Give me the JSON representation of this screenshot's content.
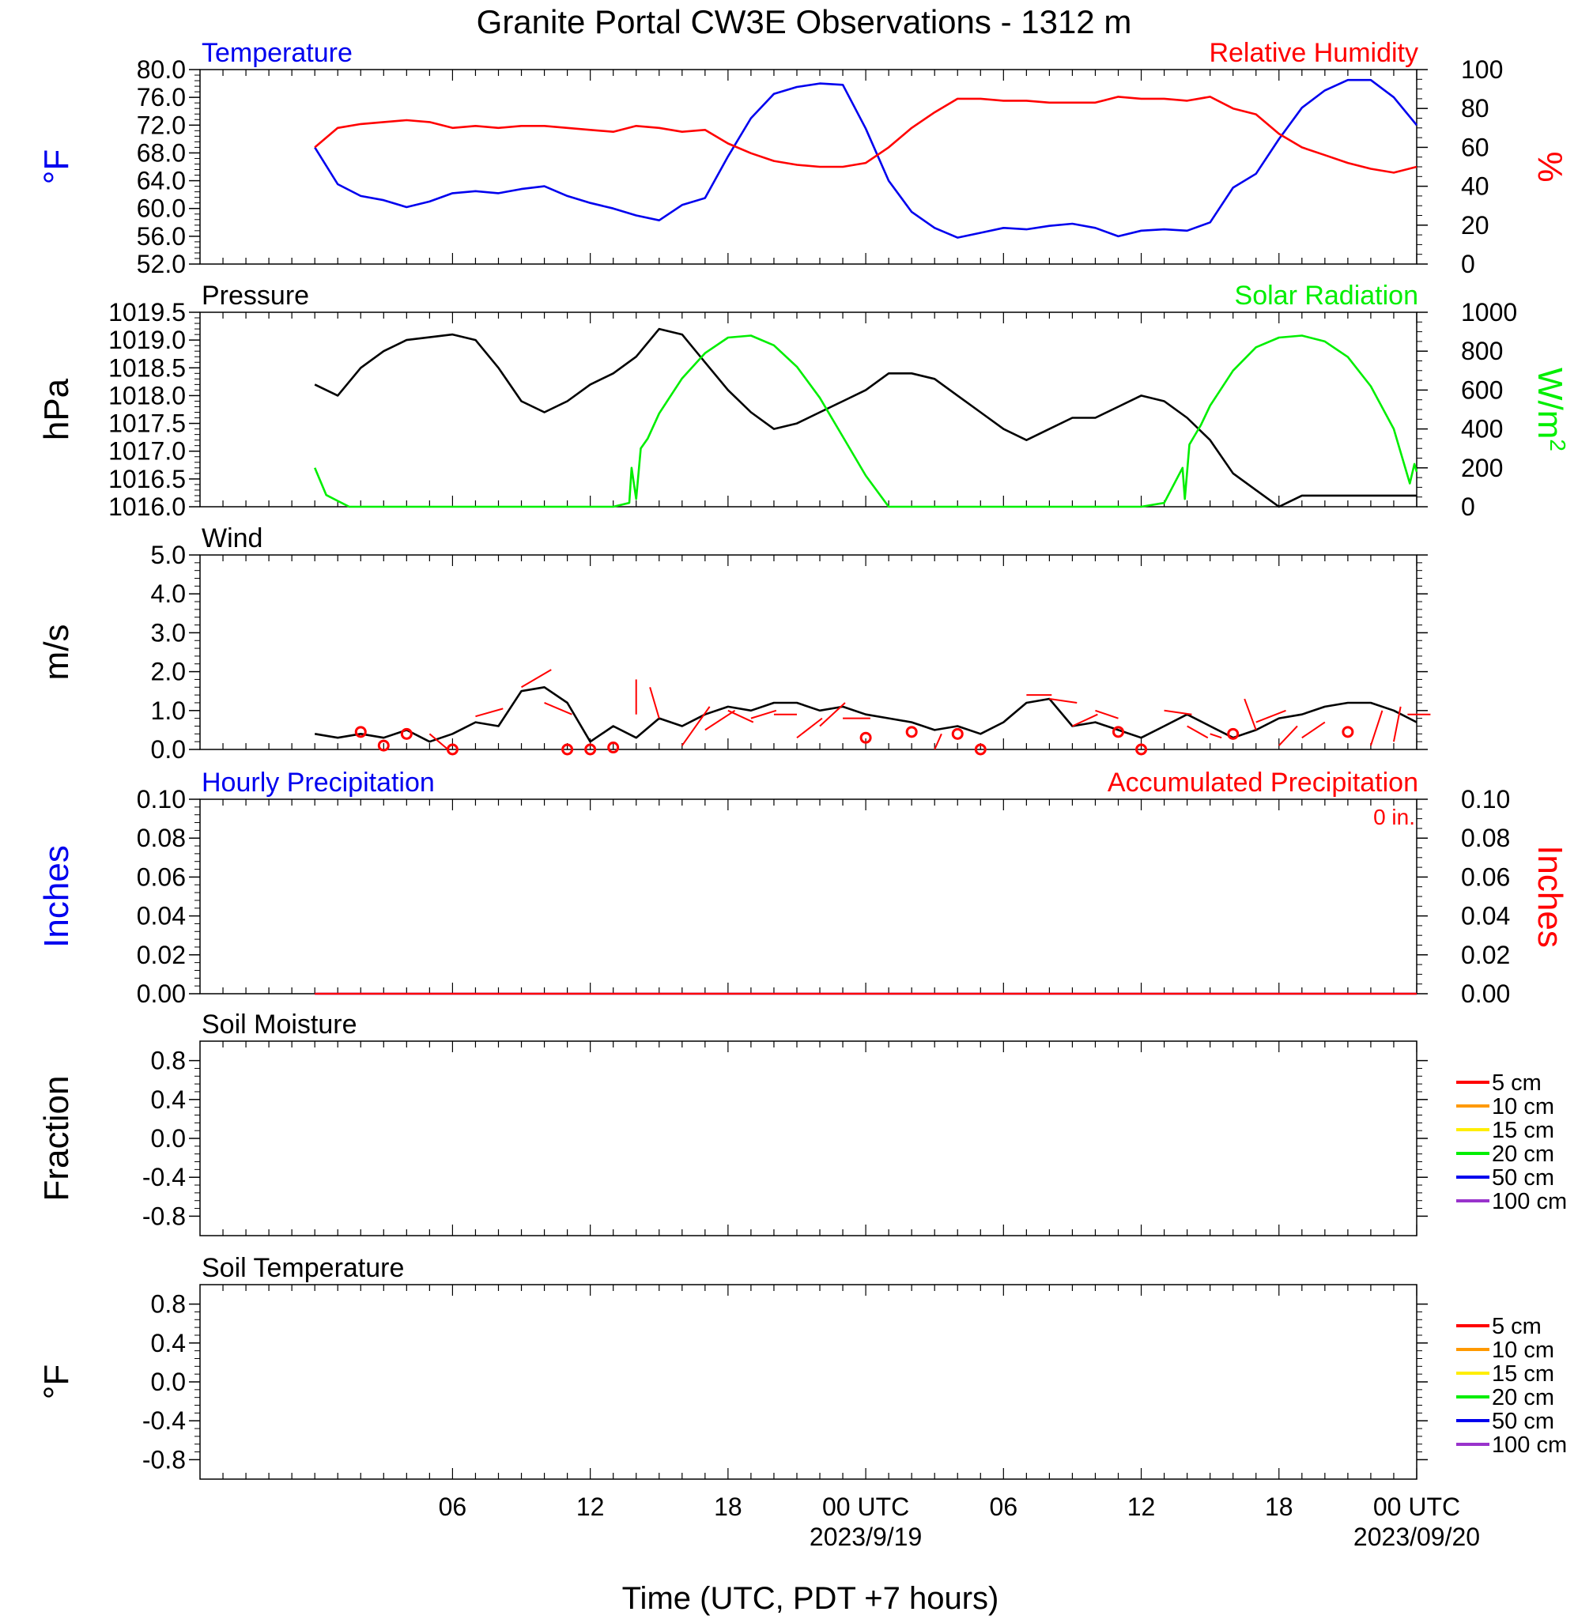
{
  "title": "Granite Portal CW3E Observations - 1312 m",
  "xlabel": "Time (UTC, PDT +7 hours)",
  "x_ticks": [
    {
      "hour": 6,
      "label": "06"
    },
    {
      "hour": 12,
      "label": "12"
    },
    {
      "hour": 18,
      "label": "18"
    },
    {
      "hour": 24,
      "label": "00 UTC",
      "sub": "2023/9/19"
    },
    {
      "hour": 30,
      "label": "06"
    },
    {
      "hour": 36,
      "label": "12"
    },
    {
      "hour": 42,
      "label": "18"
    },
    {
      "hour": 48,
      "label": "00 UTC",
      "sub": "2023/09/20"
    }
  ],
  "colors": {
    "temperature": "#0000ee",
    "humidity": "#ff0000",
    "pressure": "#000000",
    "solar": "#00ee00",
    "wind": "#000000",
    "wind_barb": "#ff0000",
    "hourly_precip": "#0000ee",
    "accum_precip": "#ff0000"
  },
  "chart_data": [
    {
      "id": "temp_rh",
      "type": "line",
      "x_unit": "hours since 2023-09-18 00 UTC",
      "xlim": [
        -5,
        48
      ],
      "left": {
        "label": "Temperature",
        "unit_label": "°F",
        "ylim": [
          52,
          80
        ],
        "ticks": [
          "52.0",
          "56.0",
          "60.0",
          "64.0",
          "68.0",
          "72.0",
          "76.0",
          "80.0"
        ]
      },
      "right": {
        "label": "Relative Humidity",
        "unit_label": "%",
        "ylim": [
          0,
          100
        ],
        "ticks": [
          "0",
          "20",
          "40",
          "60",
          "80",
          "100"
        ]
      },
      "series": [
        {
          "name": "Temperature",
          "axis": "left",
          "color": "#0000ee",
          "x": [
            0,
            1,
            2,
            3,
            4,
            5,
            6,
            7,
            8,
            9,
            10,
            11,
            12,
            13,
            14,
            15,
            16,
            17,
            18,
            19,
            20,
            21,
            22,
            23,
            24,
            25,
            26,
            27,
            28,
            29,
            30,
            31,
            32,
            33,
            34,
            35,
            36,
            37,
            38,
            39,
            40,
            41,
            42,
            43,
            44,
            45,
            46,
            47,
            48
          ],
          "y": [
            68.8,
            63.5,
            61.8,
            61.2,
            60.2,
            61.0,
            62.2,
            62.5,
            62.2,
            62.8,
            63.2,
            61.8,
            60.8,
            60.0,
            59.0,
            58.3,
            60.5,
            61.5,
            67.5,
            73.0,
            76.5,
            77.5,
            78.0,
            77.8,
            71.5,
            64.0,
            59.5,
            57.2,
            55.8,
            56.5,
            57.2,
            57.0,
            57.5,
            57.8,
            57.2,
            56.0,
            56.8,
            57.0,
            56.8,
            58.0,
            63.0,
            65.0,
            70.0,
            74.5,
            77.0,
            78.5,
            78.5,
            76.0,
            72.0
          ]
        },
        {
          "name": "Relative Humidity",
          "axis": "right",
          "color": "#ff0000",
          "x": [
            0,
            1,
            2,
            3,
            4,
            5,
            6,
            7,
            8,
            9,
            10,
            11,
            12,
            13,
            14,
            15,
            16,
            17,
            18,
            19,
            20,
            21,
            22,
            23,
            24,
            25,
            26,
            27,
            28,
            29,
            30,
            31,
            32,
            33,
            34,
            35,
            36,
            37,
            38,
            39,
            40,
            41,
            42,
            43,
            44,
            45,
            46,
            47,
            48
          ],
          "y": [
            60,
            70,
            72,
            73,
            74,
            73,
            70,
            71,
            70,
            71,
            71,
            70,
            69,
            68,
            71,
            70,
            68,
            69,
            62,
            57,
            53,
            51,
            50,
            50,
            52,
            60,
            70,
            78,
            85,
            85,
            84,
            84,
            83,
            83,
            83,
            86,
            85,
            85,
            84,
            86,
            80,
            77,
            67,
            60,
            56,
            52,
            49,
            47,
            50
          ]
        }
      ]
    },
    {
      "id": "pressure_solar",
      "type": "line",
      "x_unit": "hours since 2023-09-18 00 UTC",
      "xlim": [
        -5,
        48
      ],
      "left": {
        "label": "Pressure",
        "unit_label": "hPa",
        "ylim": [
          1016.0,
          1019.5
        ],
        "ticks": [
          "1016.0",
          "1016.5",
          "1017.0",
          "1017.5",
          "1018.0",
          "1018.5",
          "1019.0",
          "1019.5"
        ]
      },
      "right": {
        "label": "Solar Radiation",
        "unit_label": "W/m",
        "unit_sup": "2",
        "ylim": [
          0,
          1000
        ],
        "ticks": [
          "0",
          "200",
          "400",
          "600",
          "800",
          "1000"
        ]
      },
      "series": [
        {
          "name": "Pressure",
          "axis": "left",
          "color": "#000000",
          "x": [
            0,
            1,
            2,
            3,
            4,
            5,
            6,
            7,
            8,
            9,
            10,
            11,
            12,
            13,
            14,
            15,
            16,
            17,
            18,
            19,
            20,
            21,
            22,
            23,
            24,
            25,
            26,
            27,
            28,
            29,
            30,
            31,
            32,
            33,
            34,
            35,
            36,
            37,
            38,
            39,
            40,
            41,
            42,
            43,
            44,
            45,
            46,
            47,
            48
          ],
          "y": [
            1018.2,
            1018.0,
            1018.5,
            1018.8,
            1019.0,
            1019.05,
            1019.1,
            1019.0,
            1018.5,
            1017.9,
            1017.7,
            1017.9,
            1018.2,
            1018.4,
            1018.7,
            1019.2,
            1019.1,
            1018.6,
            1018.1,
            1017.7,
            1017.4,
            1017.5,
            1017.7,
            1017.9,
            1018.1,
            1018.4,
            1018.4,
            1018.3,
            1018.0,
            1017.7,
            1017.4,
            1017.2,
            1017.4,
            1017.6,
            1017.6,
            1017.8,
            1018.0,
            1017.9,
            1017.6,
            1017.2,
            1016.6,
            1016.3,
            1016.0,
            1016.2,
            1016.2,
            1016.2,
            1016.2,
            1016.2,
            1016.2
          ]
        },
        {
          "name": "Solar Radiation",
          "axis": "right",
          "color": "#00ee00",
          "x": [
            0,
            0.5,
            1,
            1.5,
            2,
            3,
            4,
            5,
            6,
            7,
            8,
            9,
            10,
            11,
            12,
            13,
            13.7,
            13.8,
            14.0,
            14.2,
            14.5,
            15,
            16,
            17,
            18,
            19,
            20,
            21,
            22,
            23,
            24,
            25,
            26,
            27,
            28,
            29,
            30,
            31,
            32,
            33,
            34,
            35,
            36,
            37,
            37.8,
            37.9,
            38.1,
            38.3,
            38.6,
            39,
            40,
            41,
            42,
            43,
            44,
            45,
            46,
            47,
            47.7,
            47.9,
            48
          ],
          "y": [
            200,
            60,
            30,
            0,
            0,
            0,
            0,
            0,
            0,
            0,
            0,
            0,
            0,
            0,
            0,
            0,
            20,
            200,
            40,
            300,
            350,
            480,
            660,
            790,
            870,
            880,
            830,
            720,
            560,
            360,
            160,
            0,
            0,
            0,
            0,
            0,
            0,
            0,
            0,
            0,
            0,
            0,
            0,
            20,
            200,
            40,
            320,
            360,
            420,
            520,
            700,
            820,
            870,
            880,
            850,
            770,
            620,
            400,
            120,
            220,
            180
          ]
        }
      ]
    },
    {
      "id": "wind",
      "type": "line",
      "x_unit": "hours since 2023-09-18 00 UTC",
      "xlim": [
        -5,
        48
      ],
      "left": {
        "label": "Wind",
        "unit_label": "m/s",
        "ylim": [
          0,
          5
        ],
        "ticks": [
          "0.0",
          "1.0",
          "2.0",
          "3.0",
          "4.0",
          "5.0"
        ]
      },
      "series": [
        {
          "name": "Wind",
          "axis": "left",
          "color": "#000000",
          "x": [
            0,
            1,
            2,
            3,
            4,
            5,
            6,
            7,
            8,
            9,
            10,
            11,
            12,
            13,
            14,
            15,
            16,
            17,
            18,
            19,
            20,
            21,
            22,
            23,
            24,
            25,
            26,
            27,
            28,
            29,
            30,
            31,
            32,
            33,
            34,
            35,
            36,
            37,
            38,
            39,
            40,
            41,
            42,
            43,
            44,
            45,
            46,
            47,
            48
          ],
          "y": [
            0.4,
            0.3,
            0.4,
            0.3,
            0.5,
            0.2,
            0.4,
            0.7,
            0.6,
            1.5,
            1.6,
            1.2,
            0.2,
            0.6,
            0.3,
            0.8,
            0.6,
            0.9,
            1.1,
            1.0,
            1.2,
            1.2,
            1.0,
            1.1,
            0.9,
            0.8,
            0.7,
            0.5,
            0.6,
            0.4,
            0.7,
            1.2,
            1.3,
            0.6,
            0.7,
            0.5,
            0.3,
            0.6,
            0.9,
            0.6,
            0.3,
            0.5,
            0.8,
            0.9,
            1.1,
            1.2,
            1.2,
            1.0,
            0.7
          ]
        }
      ],
      "barbs": [
        {
          "x": 2,
          "y": 0.45,
          "calm": true
        },
        {
          "x": 3,
          "y": 0.1,
          "calm": true
        },
        {
          "x": 4,
          "y": 0.4,
          "calm": true
        },
        {
          "x": 6,
          "y": 0.0,
          "calm": true
        },
        {
          "x": 11,
          "y": 0.0,
          "calm": true
        },
        {
          "x": 12,
          "y": 0.0,
          "calm": true
        },
        {
          "x": 13,
          "y": 0.05,
          "calm": true
        },
        {
          "x": 24,
          "y": 0.3,
          "calm": true
        },
        {
          "x": 26,
          "y": 0.45,
          "calm": true
        },
        {
          "x": 28,
          "y": 0.4,
          "calm": true
        },
        {
          "x": 29,
          "y": 0.0,
          "calm": true
        },
        {
          "x": 35,
          "y": 0.45,
          "calm": true
        },
        {
          "x": 36,
          "y": 0.0,
          "calm": true
        },
        {
          "x": 40,
          "y": 0.4,
          "calm": true
        },
        {
          "x": 45,
          "y": 0.45,
          "calm": true
        },
        {
          "x": 5,
          "y": 0.4,
          "dx": 0.8,
          "dy": -0.4
        },
        {
          "x": 7,
          "y": 0.85,
          "dx": 1.2,
          "dy": 0.2
        },
        {
          "x": 9,
          "y": 1.6,
          "dx": 1.3,
          "dy": 0.45
        },
        {
          "x": 10,
          "y": 1.2,
          "dx": 1.2,
          "dy": -0.3
        },
        {
          "x": 14,
          "y": 0.9,
          "dx": 0.0,
          "dy": 0.9
        },
        {
          "x": 15,
          "y": 0.8,
          "dx": -0.4,
          "dy": 0.8
        },
        {
          "x": 16,
          "y": 0.1,
          "dx": 1.2,
          "dy": 1.0
        },
        {
          "x": 17,
          "y": 0.5,
          "dx": 1.3,
          "dy": 0.5
        },
        {
          "x": 18,
          "y": 1.0,
          "dx": 1.1,
          "dy": -0.3
        },
        {
          "x": 19,
          "y": 0.8,
          "dx": 1.1,
          "dy": 0.2
        },
        {
          "x": 20,
          "y": 0.9,
          "dx": 1.0,
          "dy": 0.0
        },
        {
          "x": 21,
          "y": 0.3,
          "dx": 1.1,
          "dy": 0.5
        },
        {
          "x": 22,
          "y": 0.6,
          "dx": 1.1,
          "dy": 0.6
        },
        {
          "x": 23,
          "y": 0.8,
          "dx": 1.2,
          "dy": 0.0
        },
        {
          "x": 27,
          "y": 0.0,
          "dx": 0.3,
          "dy": 0.4
        },
        {
          "x": 31,
          "y": 1.4,
          "dx": 1.1,
          "dy": 0.0
        },
        {
          "x": 32,
          "y": 1.3,
          "dx": 1.2,
          "dy": -0.1
        },
        {
          "x": 33,
          "y": 0.6,
          "dx": 1.1,
          "dy": 0.3
        },
        {
          "x": 34,
          "y": 1.0,
          "dx": 1.0,
          "dy": -0.2
        },
        {
          "x": 37,
          "y": 1.0,
          "dx": 1.2,
          "dy": -0.1
        },
        {
          "x": 38,
          "y": 0.6,
          "dx": 0.9,
          "dy": -0.3
        },
        {
          "x": 39,
          "y": 0.4,
          "dx": 0.5,
          "dy": -0.1
        },
        {
          "x": 40.5,
          "y": 1.3,
          "dx": 0.5,
          "dy": -0.8
        },
        {
          "x": 41,
          "y": 0.7,
          "dx": 1.3,
          "dy": 0.3
        },
        {
          "x": 42,
          "y": 0.1,
          "dx": 0.8,
          "dy": 0.5
        },
        {
          "x": 43,
          "y": 0.3,
          "dx": 1.0,
          "dy": 0.4
        },
        {
          "x": 46,
          "y": 0.1,
          "dx": 0.5,
          "dy": 0.9
        },
        {
          "x": 47,
          "y": 0.2,
          "dx": 0.3,
          "dy": 0.9
        },
        {
          "x": 47.6,
          "y": 0.9,
          "dx": 1.0,
          "dy": 0.0
        }
      ]
    },
    {
      "id": "precip",
      "type": "line",
      "x_unit": "hours since 2023-09-18 00 UTC",
      "xlim": [
        -5,
        48
      ],
      "left": {
        "label": "Hourly Precipitation",
        "unit_label": "Inches",
        "ylim": [
          0,
          0.1
        ],
        "ticks": [
          "0.00",
          "0.02",
          "0.04",
          "0.06",
          "0.08",
          "0.10"
        ]
      },
      "right": {
        "label": "Accumulated Precipitation",
        "unit_label": "Inches",
        "ylim": [
          0,
          0.1
        ],
        "ticks": [
          "0.00",
          "0.02",
          "0.04",
          "0.06",
          "0.08",
          "0.10"
        ]
      },
      "annotation": "0 in.",
      "series": [
        {
          "name": "Hourly Precipitation",
          "axis": "left",
          "color": "#0000ee",
          "x": [
            0,
            48
          ],
          "y": [
            0,
            0
          ]
        },
        {
          "name": "Accumulated Precipitation",
          "axis": "right",
          "color": "#ff0000",
          "x": [
            0,
            48
          ],
          "y": [
            0,
            0
          ]
        }
      ]
    },
    {
      "id": "soil_moisture",
      "type": "line",
      "xlim": [
        -5,
        48
      ],
      "left": {
        "label": "Soil Moisture",
        "unit_label": "Fraction",
        "ylim": [
          -1,
          1
        ],
        "ticks": [
          "-0.8",
          "-0.4",
          "0.0",
          "0.4",
          "0.8"
        ]
      },
      "legend": [
        {
          "label": "5 cm",
          "color": "#ff0000"
        },
        {
          "label": "10 cm",
          "color": "#ff9900"
        },
        {
          "label": "15 cm",
          "color": "#ffee00"
        },
        {
          "label": "20 cm",
          "color": "#00ee00"
        },
        {
          "label": "50 cm",
          "color": "#0000ee"
        },
        {
          "label": "100 cm",
          "color": "#9933cc"
        }
      ],
      "series": []
    },
    {
      "id": "soil_temperature",
      "type": "line",
      "xlim": [
        -5,
        48
      ],
      "left": {
        "label": "Soil Temperature",
        "unit_label": "°F",
        "ylim": [
          -1,
          1
        ],
        "ticks": [
          "-0.8",
          "-0.4",
          "0.0",
          "0.4",
          "0.8"
        ]
      },
      "legend": [
        {
          "label": "5 cm",
          "color": "#ff0000"
        },
        {
          "label": "10 cm",
          "color": "#ff9900"
        },
        {
          "label": "15 cm",
          "color": "#ffee00"
        },
        {
          "label": "20 cm",
          "color": "#00ee00"
        },
        {
          "label": "50 cm",
          "color": "#0000ee"
        },
        {
          "label": "100 cm",
          "color": "#9933cc"
        }
      ],
      "series": []
    }
  ]
}
